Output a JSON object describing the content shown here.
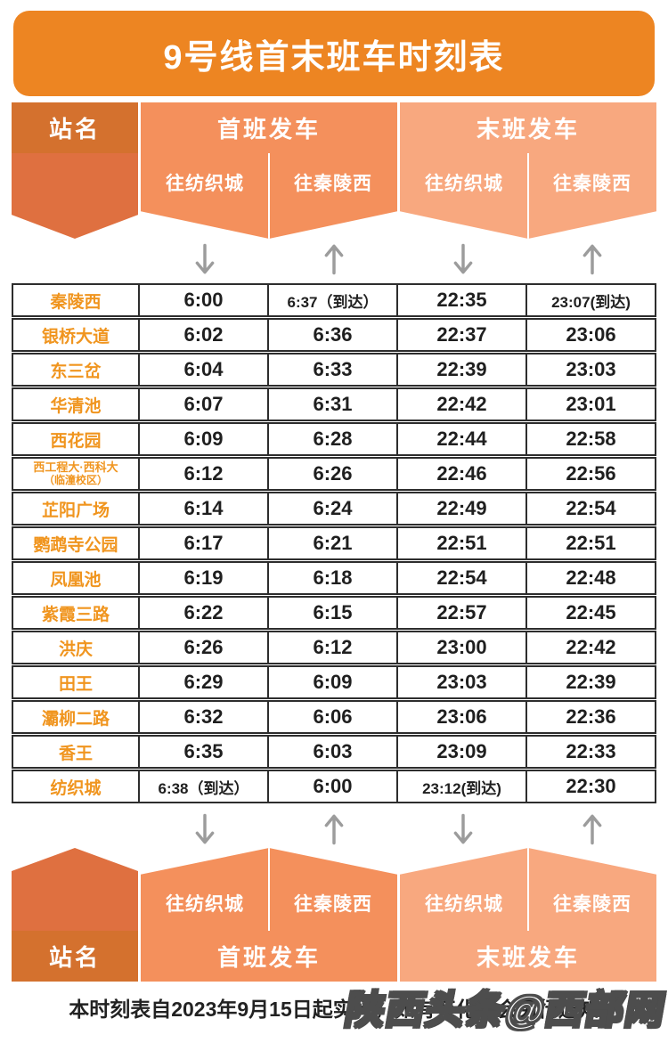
{
  "title": "9号线首末班车时刻表",
  "header": {
    "station": "站名",
    "first_train": "首班发车",
    "last_train": "末班发车",
    "directions": [
      "往纺织城",
      "往秦陵西",
      "往纺织城",
      "往秦陵西"
    ]
  },
  "arrows": [
    "down",
    "up",
    "down",
    "up"
  ],
  "table": {
    "rows": [
      {
        "station": "秦陵西",
        "times": [
          "6:00",
          "6:37（到达）",
          "22:35",
          "23:07(到达)"
        ]
      },
      {
        "station": "银桥大道",
        "times": [
          "6:02",
          "6:36",
          "22:37",
          "23:06"
        ]
      },
      {
        "station": "东三岔",
        "times": [
          "6:04",
          "6:33",
          "22:39",
          "23:03"
        ]
      },
      {
        "station": "华清池",
        "times": [
          "6:07",
          "6:31",
          "22:42",
          "23:01"
        ]
      },
      {
        "station": "西花园",
        "times": [
          "6:09",
          "6:28",
          "22:44",
          "22:58"
        ]
      },
      {
        "station": "西工程大·西科大",
        "station_line2": "（临潼校区）",
        "times": [
          "6:12",
          "6:26",
          "22:46",
          "22:56"
        ]
      },
      {
        "station": "芷阳广场",
        "times": [
          "6:14",
          "6:24",
          "22:49",
          "22:54"
        ]
      },
      {
        "station": "鹦鹉寺公园",
        "times": [
          "6:17",
          "6:21",
          "22:51",
          "22:51"
        ]
      },
      {
        "station": "凤凰池",
        "times": [
          "6:19",
          "6:18",
          "22:54",
          "22:48"
        ]
      },
      {
        "station": "紫霞三路",
        "times": [
          "6:22",
          "6:15",
          "22:57",
          "22:45"
        ]
      },
      {
        "station": "洪庆",
        "times": [
          "6:26",
          "6:12",
          "23:00",
          "22:42"
        ]
      },
      {
        "station": "田王",
        "times": [
          "6:29",
          "6:09",
          "23:03",
          "22:39"
        ]
      },
      {
        "station": "灞柳二路",
        "times": [
          "6:32",
          "6:06",
          "23:06",
          "22:36"
        ]
      },
      {
        "station": "香王",
        "times": [
          "6:35",
          "6:03",
          "23:09",
          "22:33"
        ]
      },
      {
        "station": "纺织城",
        "times": [
          "6:38（到达）",
          "6:00",
          "23:12(到达)",
          "22:30"
        ]
      }
    ]
  },
  "footer": {
    "note": "本时刻表自2023年9月15日起实行，如有变化将会另行通知"
  },
  "watermark": "陕西头条@西部网",
  "colors": {
    "banner": "#ED8522",
    "headerDark": "#D4712E",
    "ribbonDark": "#DF7040",
    "mid": "#F4905C",
    "light": "#F8A87F",
    "stationText": "#F0951F",
    "timeText": "#1F1F1F",
    "border": "#2D2D2D",
    "arrow": "#9C9C9C"
  }
}
